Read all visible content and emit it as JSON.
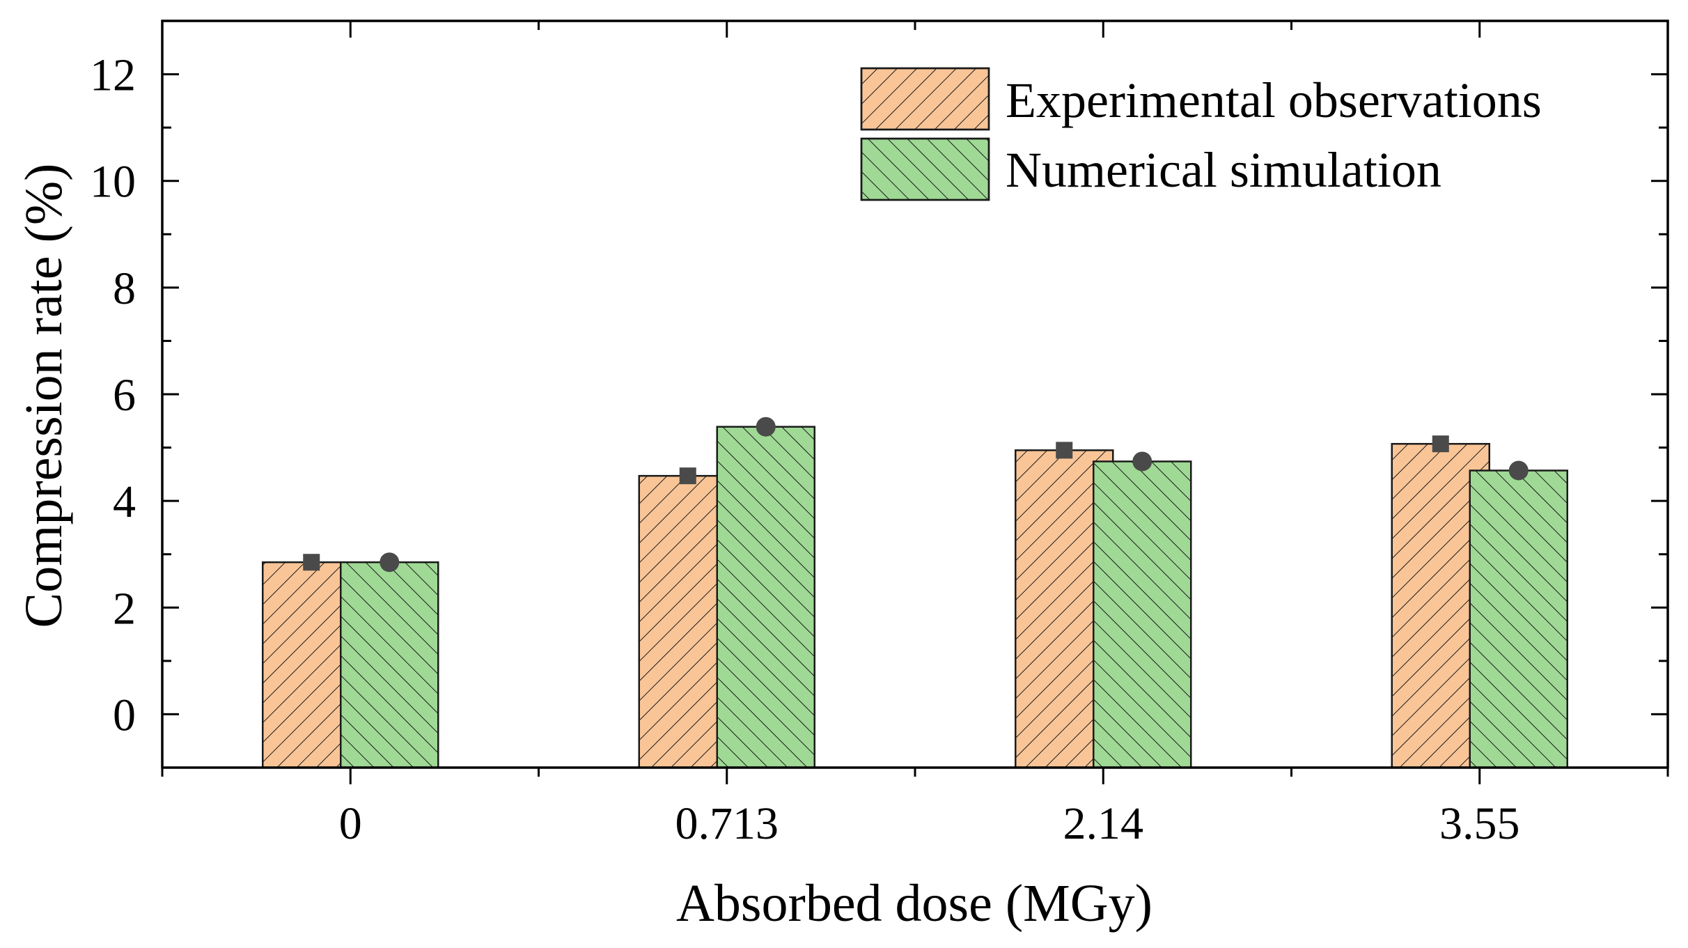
{
  "chart_data": {
    "type": "bar",
    "xlabel": "Absorbed dose (MGy)",
    "ylabel": "Compression rate (%)",
    "ylim": [
      -1,
      13
    ],
    "yticks": [
      0,
      2,
      4,
      6,
      8,
      10,
      12
    ],
    "categories": [
      "0",
      "0.713",
      "2.14",
      "3.55"
    ],
    "series": [
      {
        "name": "Experimental observations",
        "values": [
          2.85,
          4.47,
          4.95,
          5.07
        ],
        "color": "#f9c597",
        "hatch": "forward",
        "marker": "square"
      },
      {
        "name": "Numerical simulation",
        "values": [
          2.85,
          5.39,
          4.74,
          4.57
        ],
        "color": "#9fd995",
        "hatch": "backward",
        "marker": "circle"
      }
    ],
    "legend_position": "top-right",
    "marker_color": "#4a4a4a"
  }
}
